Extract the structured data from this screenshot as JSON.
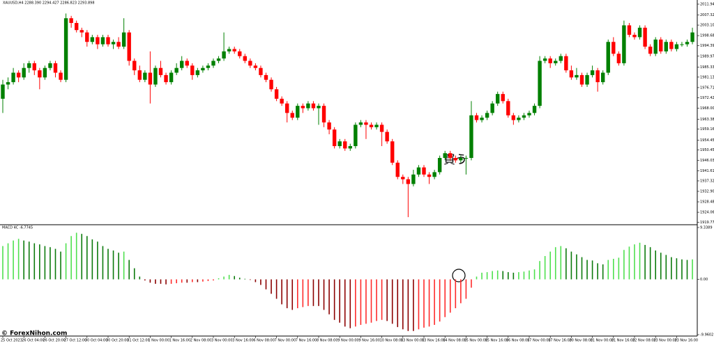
{
  "chart_data": [
    {
      "type": "candlestick",
      "title": "XAUUSD,H4 2288.390 2294.427 2286.823 2293.898",
      "annotation": "買う",
      "watermark": "© ForexNihon.com",
      "up_color": "#008000",
      "down_color": "#ff0000",
      "ylim": [
        1918.8,
        2013.7
      ],
      "yticks": [
        {
          "value": 2011.94,
          "label": "2011.940"
        },
        {
          "value": 2007.32,
          "label": "2007.320"
        },
        {
          "value": 2003.1,
          "label": "2003.100"
        },
        {
          "value": 1998.68,
          "label": "1998.680"
        },
        {
          "value": 1994.39,
          "label": "1994.390"
        },
        {
          "value": 1989.97,
          "label": "1989.970"
        },
        {
          "value": 1985.33,
          "label": "1985.330"
        },
        {
          "value": 1981.13,
          "label": "1981.130"
        },
        {
          "value": 1976.71,
          "label": "1976.710"
        },
        {
          "value": 1972.42,
          "label": "1972.420"
        },
        {
          "value": 1968,
          "label": "1968.000"
        },
        {
          "value": 1963.38,
          "label": "1963.380"
        },
        {
          "value": 1959.16,
          "label": "1959.160"
        },
        {
          "value": 1954.45,
          "label": "1954.450"
        },
        {
          "value": 1950.45,
          "label": "1950.450"
        },
        {
          "value": 1946.03,
          "label": "1946.030"
        },
        {
          "value": 1941.61,
          "label": "1941.610"
        },
        {
          "value": 1937.32,
          "label": "1937.320"
        },
        {
          "value": 1932.9,
          "label": "1932.900"
        },
        {
          "value": 1928.48,
          "label": "1928.480"
        },
        {
          "value": 1924.06,
          "label": "1924.060"
        },
        {
          "value": 1919.77,
          "label": "1919.770"
        }
      ],
      "x_labels": [
        "25 Oct 2023",
        "26 Oct 04:00",
        "26 Oct 20:00",
        "27 Oct 12:00",
        "30 Oct 04:00",
        "30 Oct 20:00",
        "31 Oct 12:00",
        "1 Nov 00:00",
        "1 Nov 16:00",
        "2 Nov 08:00",
        "3 Nov 00:00",
        "3 Nov 16:00",
        "6 Nov 08:00",
        "7 Nov 00:00",
        "7 Nov 16:00",
        "8 Nov 08:00",
        "9 Nov 00:00",
        "9 Nov 16:00",
        "10 Nov 08:00",
        "13 Nov 00:00",
        "13 Nov 16:00",
        "14 Nov 08:00",
        "15 Nov 00:00",
        "15 Nov 16:00",
        "16 Nov 08:00",
        "17 Nov 00:00",
        "17 Nov 16:00",
        "20 Nov 08:00",
        "21 Nov 00:00",
        "21 Nov 16:00",
        "22 Nov 08:00",
        "23 Nov 00:00",
        "23 Nov 16:00"
      ],
      "ohlc": [
        [
          1972,
          1980,
          1966,
          1978
        ],
        [
          1978,
          1981,
          1976,
          1979
        ],
        [
          1979,
          1985,
          1978,
          1983
        ],
        [
          1983,
          1984,
          1979,
          1981
        ],
        [
          1981,
          1987,
          1980,
          1985
        ],
        [
          1985,
          1988,
          1983,
          1987
        ],
        [
          1987,
          1988,
          1982,
          1984
        ],
        [
          1984,
          1985,
          1976,
          1981
        ],
        [
          1981,
          1986,
          1980,
          1985
        ],
        [
          1985,
          1988,
          1984,
          1987
        ],
        [
          1987,
          1988,
          1981,
          1983
        ],
        [
          1983,
          1984,
          1979,
          1980
        ],
        [
          1980,
          2008,
          1979,
          2006
        ],
        [
          2006,
          2007,
          2002,
          2004
        ],
        [
          2004,
          2005,
          2000,
          2001
        ],
        [
          2001,
          2002,
          1998,
          2000
        ],
        [
          2000,
          2001,
          1994,
          1996
        ],
        [
          1996,
          1999,
          1995,
          1998
        ],
        [
          1998,
          1999,
          1993,
          1995
        ],
        [
          1995,
          1999,
          1994,
          1998
        ],
        [
          1998,
          1999,
          1994,
          1995
        ],
        [
          1995,
          1997,
          1993,
          1996
        ],
        [
          1996,
          1998,
          1993,
          1994
        ],
        [
          1994,
          2006,
          1993,
          2000
        ],
        [
          2000,
          2001,
          1986,
          1988
        ],
        [
          1988,
          1989,
          1982,
          1984
        ],
        [
          1984,
          1986,
          1979,
          1980
        ],
        [
          1980,
          1984,
          1979,
          1983
        ],
        [
          1983,
          1992,
          1970,
          1978
        ],
        [
          1978,
          1986,
          1977,
          1985
        ],
        [
          1985,
          1988,
          1981,
          1982
        ],
        [
          1982,
          1983,
          1978,
          1979
        ],
        [
          1979,
          1984,
          1978,
          1983
        ],
        [
          1983,
          1987,
          1982,
          1985
        ],
        [
          1985,
          1990,
          1984,
          1988
        ],
        [
          1988,
          1989,
          1985,
          1986
        ],
        [
          1986,
          1987,
          1980,
          1982
        ],
        [
          1982,
          1985,
          1981,
          1984
        ],
        [
          1984,
          1986,
          1983,
          1985
        ],
        [
          1985,
          1987,
          1984,
          1986
        ],
        [
          1986,
          1989,
          1985,
          1988
        ],
        [
          1988,
          1990,
          1987,
          1989
        ],
        [
          1989,
          2000,
          1988,
          1992
        ],
        [
          1992,
          1994,
          1991,
          1993
        ],
        [
          1993,
          1994,
          1991,
          1992
        ],
        [
          1992,
          1993,
          1989,
          1990
        ],
        [
          1990,
          1991,
          1987,
          1988
        ],
        [
          1988,
          1989,
          1985,
          1986
        ],
        [
          1986,
          1987,
          1984,
          1985
        ],
        [
          1985,
          1986,
          1981,
          1982
        ],
        [
          1982,
          1983,
          1979,
          1980
        ],
        [
          1980,
          1981,
          1975,
          1976
        ],
        [
          1976,
          1977,
          1971,
          1972
        ],
        [
          1972,
          1973,
          1969,
          1970
        ],
        [
          1970,
          1971,
          1962,
          1966
        ],
        [
          1966,
          1967,
          1963,
          1964
        ],
        [
          1964,
          1970,
          1963,
          1969
        ],
        [
          1969,
          1970,
          1966,
          1968
        ],
        [
          1968,
          1971,
          1967,
          1970
        ],
        [
          1970,
          1971,
          1967,
          1968
        ],
        [
          1968,
          1970,
          1961,
          1969
        ],
        [
          1969,
          1970,
          1960,
          1962
        ],
        [
          1962,
          1963,
          1957,
          1959
        ],
        [
          1959,
          1960,
          1951,
          1952
        ],
        [
          1952,
          1955,
          1951,
          1954
        ],
        [
          1954,
          1955,
          1950,
          1951
        ],
        [
          1951,
          1953,
          1950,
          1952
        ],
        [
          1952,
          1962,
          1951,
          1961
        ],
        [
          1961,
          1963,
          1960,
          1962
        ],
        [
          1962,
          1963,
          1955,
          1961
        ],
        [
          1961,
          1962,
          1959,
          1960
        ],
        [
          1960,
          1962,
          1959,
          1961
        ],
        [
          1961,
          1962,
          1952,
          1958
        ],
        [
          1958,
          1959,
          1953,
          1954
        ],
        [
          1954,
          1955,
          1944,
          1945
        ],
        [
          1945,
          1946,
          1938,
          1939
        ],
        [
          1939,
          1940,
          1936,
          1938
        ],
        [
          1938,
          1939,
          1922,
          1936
        ],
        [
          1936,
          1942,
          1935,
          1940
        ],
        [
          1940,
          1944,
          1939,
          1943
        ],
        [
          1943,
          1944,
          1939,
          1940
        ],
        [
          1940,
          1941,
          1936,
          1939
        ],
        [
          1939,
          1942,
          1938,
          1941
        ],
        [
          1941,
          1948,
          1940,
          1947
        ],
        [
          1947,
          1950,
          1946,
          1949
        ],
        [
          1949,
          1950,
          1946,
          1947
        ],
        [
          1947,
          1948,
          1945,
          1946
        ],
        [
          1946,
          1948,
          1945,
          1947
        ],
        [
          1947,
          1948,
          1940,
          1947
        ],
        [
          1947,
          1971,
          1946,
          1965
        ],
        [
          1965,
          1966,
          1962,
          1963
        ],
        [
          1963,
          1965,
          1962,
          1964
        ],
        [
          1964,
          1967,
          1963,
          1966
        ],
        [
          1966,
          1971,
          1965,
          1970
        ],
        [
          1970,
          1975,
          1969,
          1974
        ],
        [
          1974,
          1975,
          1970,
          1971
        ],
        [
          1971,
          1972,
          1964,
          1965
        ],
        [
          1965,
          1966,
          1961,
          1963
        ],
        [
          1963,
          1965,
          1962,
          1964
        ],
        [
          1964,
          1966,
          1963,
          1965
        ],
        [
          1965,
          1967,
          1964,
          1966
        ],
        [
          1966,
          1970,
          1965,
          1969
        ],
        [
          1969,
          1990,
          1968,
          1988
        ],
        [
          1988,
          1990,
          1987,
          1989
        ],
        [
          1989,
          1990,
          1985,
          1987
        ],
        [
          1987,
          1989,
          1986,
          1988
        ],
        [
          1988,
          1991,
          1987,
          1990
        ],
        [
          1990,
          1991,
          1983,
          1984
        ],
        [
          1984,
          1986,
          1980,
          1981
        ],
        [
          1981,
          1985,
          1980,
          1982
        ],
        [
          1982,
          1983,
          1977,
          1978
        ],
        [
          1978,
          1983,
          1977,
          1982
        ],
        [
          1982,
          1986,
          1981,
          1984
        ],
        [
          1984,
          1985,
          1975,
          1979
        ],
        [
          1979,
          1984,
          1978,
          1983
        ],
        [
          1983,
          1997,
          1982,
          1996
        ],
        [
          1996,
          1998,
          1990,
          1991
        ],
        [
          1991,
          1992,
          1986,
          1987
        ],
        [
          1987,
          2005,
          1986,
          2003
        ],
        [
          2003,
          2004,
          1998,
          1999
        ],
        [
          1999,
          2000,
          1997,
          1998
        ],
        [
          1998,
          2003,
          1997,
          2002
        ],
        [
          2002,
          2003,
          1993,
          1994
        ],
        [
          1994,
          1995,
          1990,
          1991
        ],
        [
          1991,
          1998,
          1990,
          1997
        ],
        [
          1997,
          1998,
          1991,
          1992
        ],
        [
          1992,
          1997,
          1991,
          1996
        ],
        [
          1996,
          1997,
          1992,
          1993
        ],
        [
          1993,
          1996,
          1992,
          1995
        ],
        [
          1995,
          1996,
          1994,
          1995
        ],
        [
          1995,
          1997,
          1994,
          1996
        ],
        [
          1996,
          2002,
          1995,
          2000
        ]
      ]
    },
    {
      "type": "histogram",
      "title": "MACD 4C -6.7745",
      "colors": {
        "pos_rising": "#4ee04e",
        "pos_falling": "#0b7a0b",
        "neg_falling": "#8b0000",
        "neg_rising": "#ff2a2a"
      },
      "ylim": [
        -9.9602,
        9.3389
      ],
      "yticks": [
        9.3389,
        {
          "value": 0,
          "label": "0.00"
        },
        -9.9602
      ],
      "values": [
        6.0,
        6.5,
        7.0,
        7.3,
        7.0,
        6.8,
        6.5,
        6.3,
        6.0,
        5.8,
        5.5,
        5.0,
        6.5,
        7.8,
        8.4,
        8.2,
        7.8,
        7.2,
        6.8,
        6.0,
        5.5,
        5.2,
        4.8,
        5.0,
        3.5,
        2.0,
        0.5,
        -0.2,
        -0.6,
        -0.8,
        -0.8,
        -0.9,
        -0.8,
        -0.7,
        -0.6,
        -0.6,
        -0.5,
        -0.5,
        -0.4,
        -0.3,
        -0.2,
        0.2,
        0.5,
        0.8,
        0.6,
        0.3,
        0.1,
        -0.1,
        -0.5,
        -1.0,
        -1.8,
        -2.6,
        -3.5,
        -4.5,
        -5.2,
        -5.5,
        -5.2,
        -5.0,
        -4.8,
        -4.8,
        -4.8,
        -5.5,
        -6.3,
        -7.3,
        -7.8,
        -8.5,
        -8.8,
        -8.5,
        -8.2,
        -8.0,
        -7.8,
        -7.5,
        -7.3,
        -7.5,
        -8.0,
        -8.6,
        -9.0,
        -9.3,
        -9.3,
        -9.0,
        -8.7,
        -8.5,
        -8.2,
        -7.6,
        -6.8,
        -6.0,
        -5.2,
        -4.3,
        -3.5,
        -1.5,
        0.5,
        1.2,
        1.3,
        1.5,
        1.6,
        1.5,
        1.3,
        1.2,
        1.3,
        1.4,
        1.6,
        1.8,
        3.3,
        4.2,
        5.0,
        5.8,
        6.0,
        5.6,
        5.0,
        4.5,
        4.0,
        3.5,
        3.4,
        2.9,
        2.7,
        3.5,
        3.7,
        3.9,
        5.3,
        5.9,
        6.3,
        6.6,
        6.2,
        5.8,
        5.2,
        4.8,
        4.4,
        4.0,
        3.8,
        3.6,
        3.5,
        3.6
      ]
    }
  ]
}
